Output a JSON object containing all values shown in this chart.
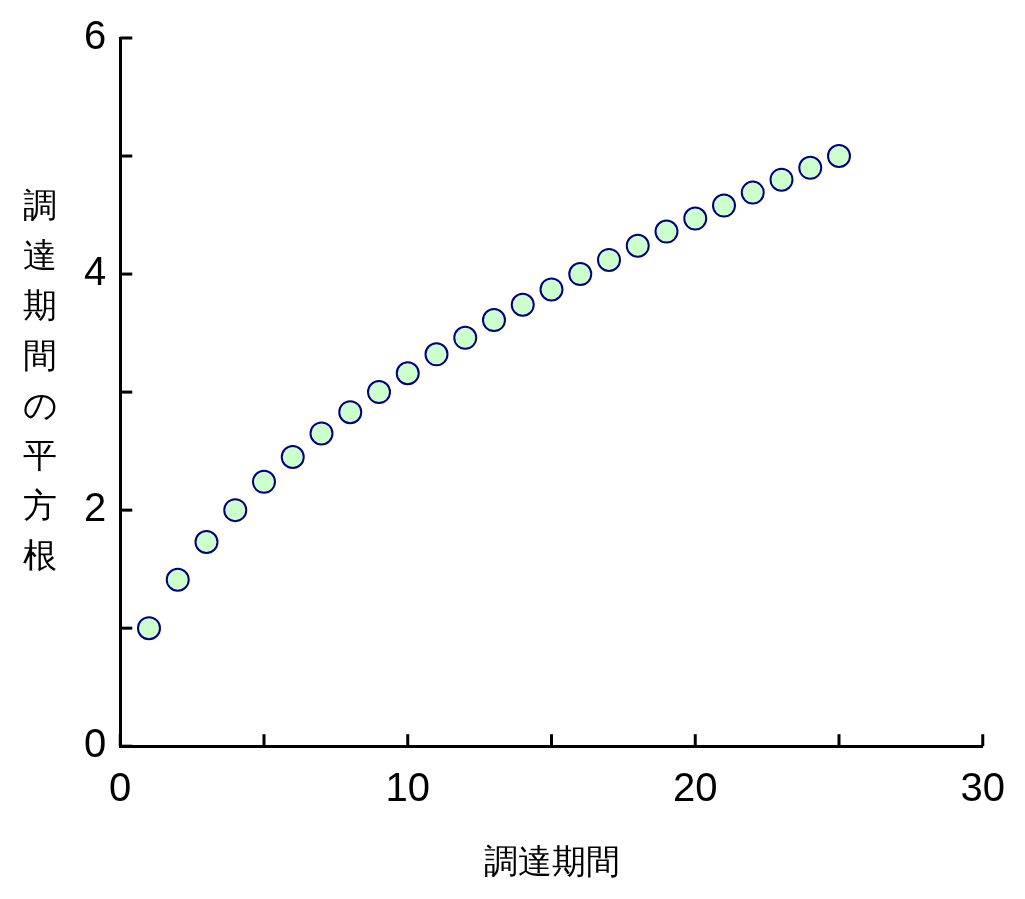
{
  "chart_data": {
    "type": "scatter",
    "xlabel": "調達期間",
    "ylabel": "調達期間の平方根",
    "x": [
      1,
      2,
      3,
      4,
      5,
      6,
      7,
      8,
      9,
      10,
      11,
      12,
      13,
      14,
      15,
      16,
      17,
      18,
      19,
      20,
      21,
      22,
      23,
      24,
      25
    ],
    "series": [
      {
        "color": "#ccffcc",
        "values": [
          1,
          1.41,
          1.73,
          2,
          2.24,
          2.45,
          2.65,
          2.83,
          3,
          3.16,
          3.32,
          3.46,
          3.61,
          3.74,
          3.87,
          4,
          4.12,
          4.24,
          4.36,
          4.47,
          4.58,
          4.69,
          4.8,
          4.9,
          5
        ]
      }
    ],
    "marker": "circle",
    "xlim": [
      0,
      30
    ],
    "xticks": [
      0,
      {
        "value": 5,
        "label": null
      },
      10,
      {
        "value": 15,
        "label": null
      },
      20,
      {
        "value": 25,
        "label": null
      },
      30
    ],
    "ylim": [
      0,
      6
    ],
    "yticks": [
      0,
      {
        "value": 1,
        "label": null
      },
      2,
      {
        "value": 3,
        "label": null
      },
      4,
      {
        "value": 5,
        "label": null
      },
      6
    ],
    "grid": false,
    "legend": false
  }
}
